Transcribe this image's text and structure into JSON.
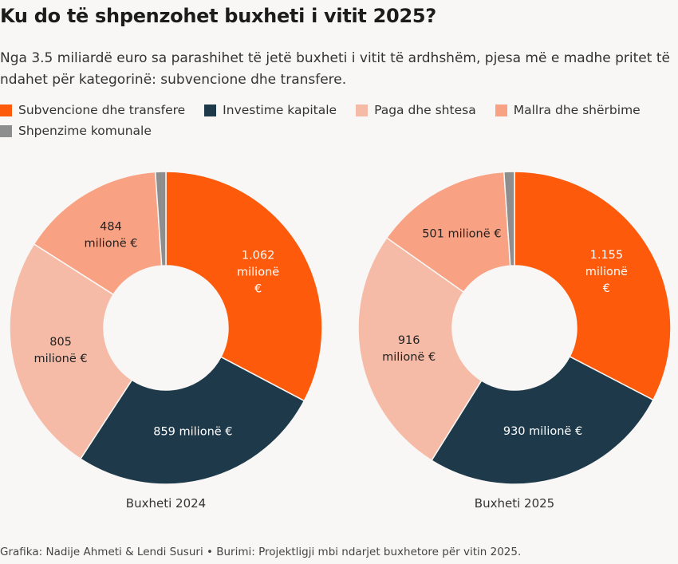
{
  "title": "Ku do të shpenzohet buxheti i vitit 2025?",
  "subtitle": "Nga 3.5 miliardë euro sa parashihet të jetë buxheti i vitit të ardhshëm, pjesa më e madhe pritet të ndahet për kategorinë: subvencione dhe transfere.",
  "legend": [
    {
      "label": "Subvencione dhe transfere",
      "color": "#fe5a0b"
    },
    {
      "label": "Investime kapitale",
      "color": "#1e3a4a"
    },
    {
      "label": "Paga dhe shtesa",
      "color": "#f6bba6"
    },
    {
      "label": "Mallra dhe shërbime",
      "color": "#f9a283"
    },
    {
      "label": "Shpenzime komunale",
      "color": "#8e8e8e"
    }
  ],
  "chart_data": [
    {
      "type": "pie",
      "title": "Buxheti 2024",
      "categories": [
        "Subvencione dhe transfere",
        "Investime kapitale",
        "Paga dhe shtesa",
        "Mallra dhe shërbime",
        "Shpenzime komunale"
      ],
      "values": [
        1062,
        859,
        805,
        484,
        35
      ],
      "unit": "milionë €",
      "labels": [
        [
          "1.062",
          "milionë",
          "€"
        ],
        [
          "859 milionë €"
        ],
        [
          "805",
          "milionë €"
        ],
        [
          "484",
          "milionë €"
        ],
        []
      ],
      "label_colors": [
        "#ffffff",
        "#ffffff",
        "#222222",
        "#222222",
        "#222222"
      ]
    },
    {
      "type": "pie",
      "title": "Buxheti 2025",
      "categories": [
        "Subvencione dhe transfere",
        "Investime kapitale",
        "Paga dhe shtesa",
        "Mallra dhe shërbime",
        "Shpenzime komunale"
      ],
      "values": [
        1155,
        930,
        916,
        501,
        38
      ],
      "unit": "milionë €",
      "labels": [
        [
          "1.155",
          "milionë",
          "€"
        ],
        [
          "930 milionë €"
        ],
        [
          "916",
          "milionë €"
        ],
        [
          "501 milionë €"
        ],
        []
      ],
      "label_colors": [
        "#ffffff",
        "#ffffff",
        "#222222",
        "#222222",
        "#222222"
      ]
    }
  ],
  "footer": "Grafika: Nadije Ahmeti & Lendi Susuri • Burimi: Projektligji mbi ndarjet buxhetore për vitin 2025."
}
